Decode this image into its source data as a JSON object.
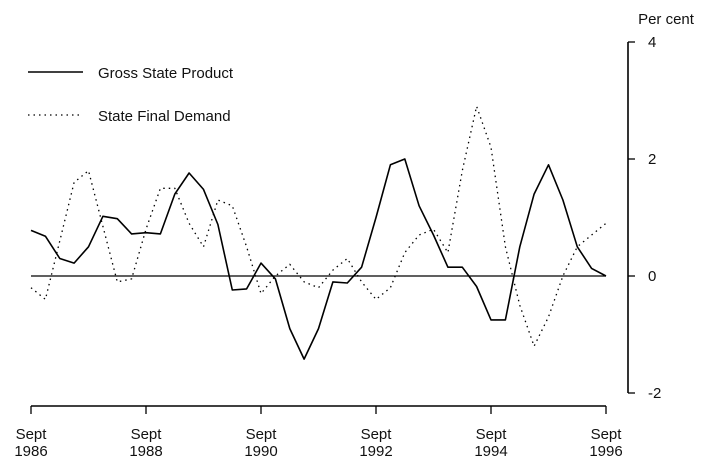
{
  "chart_data": {
    "type": "line",
    "y_axis_unit": "Per cent",
    "ylim": [
      -2,
      4
    ],
    "y_ticks": [
      {
        "value": 4,
        "label": "4"
      },
      {
        "value": 2,
        "label": "2"
      },
      {
        "value": 0,
        "label": "0"
      },
      {
        "value": -2,
        "label": "-2"
      }
    ],
    "xlim": [
      1986.75,
      1996.75
    ],
    "x_ticks": [
      {
        "value": 1986.75,
        "line1": "Sept",
        "line2": "1986"
      },
      {
        "value": 1988.75,
        "line1": "Sept",
        "line2": "1988"
      },
      {
        "value": 1990.75,
        "line1": "Sept",
        "line2": "1990"
      },
      {
        "value": 1992.75,
        "line1": "Sept",
        "line2": "1992"
      },
      {
        "value": 1994.75,
        "line1": "Sept",
        "line2": "1994"
      },
      {
        "value": 1996.75,
        "line1": "Sept",
        "line2": "1996"
      }
    ],
    "x": [
      1986.75,
      1987.0,
      1987.25,
      1987.5,
      1987.75,
      1988.0,
      1988.25,
      1988.5,
      1988.75,
      1989.0,
      1989.25,
      1989.5,
      1989.75,
      1990.0,
      1990.25,
      1990.5,
      1990.75,
      1991.0,
      1991.25,
      1991.5,
      1991.75,
      1992.0,
      1992.25,
      1992.5,
      1992.75,
      1993.0,
      1993.25,
      1993.5,
      1993.75,
      1994.0,
      1994.25,
      1994.5,
      1994.75,
      1995.0,
      1995.25,
      1995.5,
      1995.75,
      1996.0,
      1996.25,
      1996.5,
      1996.75
    ],
    "legend": "top-left",
    "grid": false,
    "zero_line": true,
    "series": [
      {
        "name": "Gross State Product",
        "style": "solid",
        "color": "#000000",
        "values": [
          0.78,
          0.68,
          0.3,
          0.22,
          0.5,
          1.02,
          0.98,
          0.72,
          0.74,
          0.72,
          1.4,
          1.76,
          1.48,
          0.88,
          -0.24,
          -0.22,
          0.22,
          -0.05,
          -0.9,
          -1.42,
          -0.9,
          -0.1,
          -0.12,
          0.15,
          1.0,
          1.9,
          2.0,
          1.2,
          0.7,
          0.15,
          0.15,
          -0.18,
          -0.75,
          -0.75,
          0.5,
          1.4,
          1.9,
          1.3,
          0.5,
          0.13,
          0.0
        ]
      },
      {
        "name": "State Final Demand",
        "style": "dotted",
        "color": "#000000",
        "values": [
          -0.2,
          -0.4,
          0.6,
          1.6,
          1.8,
          0.85,
          -0.1,
          -0.05,
          0.8,
          1.5,
          1.5,
          0.9,
          0.5,
          1.3,
          1.2,
          0.5,
          -0.3,
          0.0,
          0.2,
          -0.1,
          -0.2,
          0.1,
          0.3,
          -0.1,
          -0.4,
          -0.2,
          0.4,
          0.7,
          0.8,
          0.4,
          1.8,
          2.9,
          2.2,
          0.5,
          -0.5,
          -1.2,
          -0.7,
          0.0,
          0.5,
          0.7,
          0.9
        ]
      }
    ]
  }
}
